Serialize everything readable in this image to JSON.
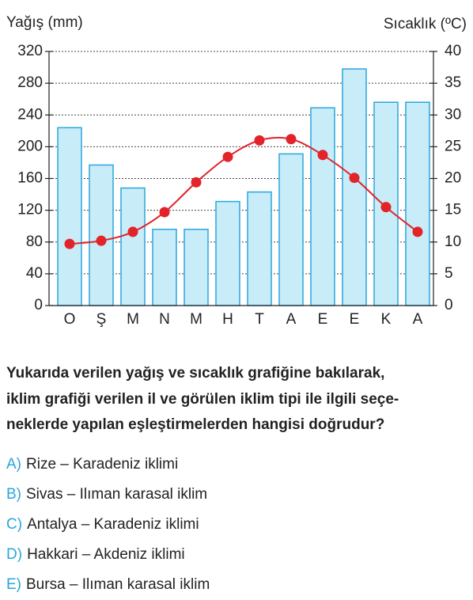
{
  "chart_data": {
    "type": "bar-line",
    "y_label": "Yağış (mm)",
    "y2_label": "Sıcaklık (ºC)",
    "categories": [
      "O",
      "Ş",
      "M",
      "N",
      "M",
      "H",
      "T",
      "A",
      "E",
      "E",
      "K",
      "A"
    ],
    "series": [
      {
        "type": "bar",
        "color": "#c8ecf8",
        "stroke": "#2aa6dc",
        "values": [
          224,
          177,
          148,
          96,
          96,
          131,
          143,
          191,
          249,
          298,
          256,
          256
        ]
      },
      {
        "type": "line",
        "axis": "y2",
        "color": "#e2232a",
        "values": [
          9.7,
          10.2,
          11.6,
          14.7,
          19.4,
          23.4,
          26.0,
          26.2,
          23.7,
          20.1,
          15.5,
          11.6
        ]
      }
    ],
    "ylim": [
      0,
      320
    ],
    "yticks": [
      0,
      40,
      80,
      120,
      160,
      200,
      240,
      280,
      320
    ],
    "y2lim": [
      0,
      40
    ],
    "y2ticks": [
      0,
      5,
      10,
      15,
      20,
      25,
      30,
      35,
      40
    ],
    "grid": true
  },
  "question": {
    "lines": [
      "Yukarıda verilen yağış ve sıcaklık grafiğine bakılarak,",
      "iklim grafiği verilen il ve görülen iklim tipi ile ilgili seçe-",
      "neklerde yapılan eşleştirmelerden hangisi doğrudur?"
    ]
  },
  "options": [
    {
      "letter": "A)",
      "text": "Rize – Karadeniz iklimi"
    },
    {
      "letter": "B)",
      "text": "Sivas – Ilıman karasal iklim"
    },
    {
      "letter": "C)",
      "text": "Antalya – Karadeniz iklimi"
    },
    {
      "letter": "D)",
      "text": "Hakkari – Akdeniz iklimi"
    },
    {
      "letter": "E)",
      "text": "Bursa – Ilıman karasal iklim"
    }
  ]
}
